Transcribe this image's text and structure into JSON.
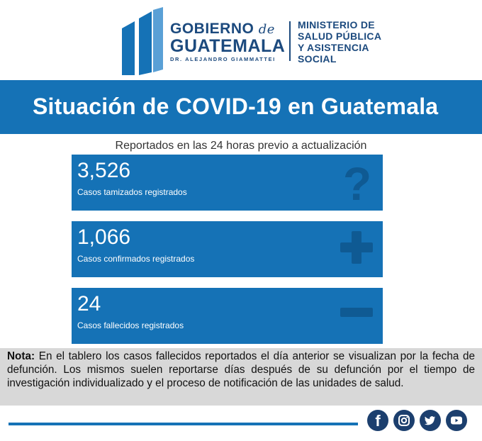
{
  "header": {
    "gov_line1": "GOBIERNO",
    "gov_de": "de",
    "gov_line2": "GUATEMALA",
    "gov_line3": "DR. ALEJANDRO GIAMMATTEI",
    "ministerio": [
      "MINISTERIO DE",
      "SALUD PÚBLICA",
      "Y ASISTENCIA",
      "SOCIAL"
    ]
  },
  "banner": {
    "title": "Situación de COVID-19 en Guatemala"
  },
  "subtitle": "Reportados en las 24 horas previo a actualización",
  "cards": [
    {
      "value": "3,526",
      "label": "Casos tamizados registrados",
      "icon": "question-icon"
    },
    {
      "value": "1,066",
      "label": "Casos confirmados registrados",
      "icon": "plus-icon"
    },
    {
      "value": "24",
      "label": "Casos fallecidos registrados",
      "icon": "minus-icon"
    }
  ],
  "note": {
    "prefix": "Nota:",
    "text": "En el tablero los casos fallecidos reportados el día anterior se visualizan por la fecha de defunción. Los mismos suelen reportarse días después de su defunción por el tiempo de investigación individualizado y el proceso de notificación de las unidades de salud."
  },
  "social": [
    "facebook-icon",
    "instagram-icon",
    "twitter-icon",
    "youtube-icon"
  ],
  "colors": {
    "primary": "#1572b6",
    "dark": "#1c4a7e",
    "note_bg": "#d8d8d8",
    "social_bg": "#1c3f6e"
  }
}
